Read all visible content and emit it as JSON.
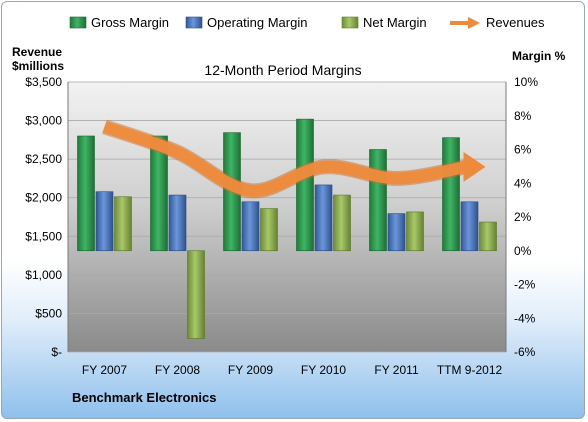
{
  "chart_data": {
    "type": "bar",
    "title": "12-Month Period Margins",
    "company": "Benchmark Electronics",
    "left_axis": {
      "label_line1": "Revenue",
      "label_line2": "$millions",
      "ticks": [
        "$3,500",
        "$3,000",
        "$2,500",
        "$2,000",
        "$1,500",
        "$1,000",
        "$500",
        "$-"
      ],
      "range": [
        0,
        3500
      ]
    },
    "right_axis": {
      "label": "Margin %",
      "ticks": [
        "10%",
        "8%",
        "6%",
        "4%",
        "2%",
        "0%",
        "-2%",
        "-4%",
        "-6%"
      ],
      "range": [
        -6,
        10
      ]
    },
    "categories": [
      "FY 2007",
      "FY 2008",
      "FY 2009",
      "FY 2010",
      "FY 2011",
      "TTM 9-2012"
    ],
    "series": [
      {
        "name": "Gross Margin",
        "type": "bar",
        "axis": "right",
        "color": "#2e9a4e",
        "values": [
          6.8,
          6.8,
          7.0,
          7.8,
          6.0,
          6.7
        ]
      },
      {
        "name": "Operating Margin",
        "type": "bar",
        "axis": "right",
        "color": "#4a78c0",
        "values": [
          3.5,
          3.3,
          2.9,
          3.9,
          2.2,
          2.9
        ]
      },
      {
        "name": "Net Margin",
        "type": "bar",
        "axis": "right",
        "color": "#8cb04a",
        "values": [
          3.2,
          -5.2,
          2.5,
          3.3,
          2.3,
          1.7
        ]
      },
      {
        "name": "Revenues",
        "type": "line",
        "axis": "left",
        "color": "#ee8a3c",
        "values": [
          2920,
          2590,
          2090,
          2400,
          2250,
          2400
        ]
      }
    ],
    "grid": true,
    "legend": "top"
  }
}
